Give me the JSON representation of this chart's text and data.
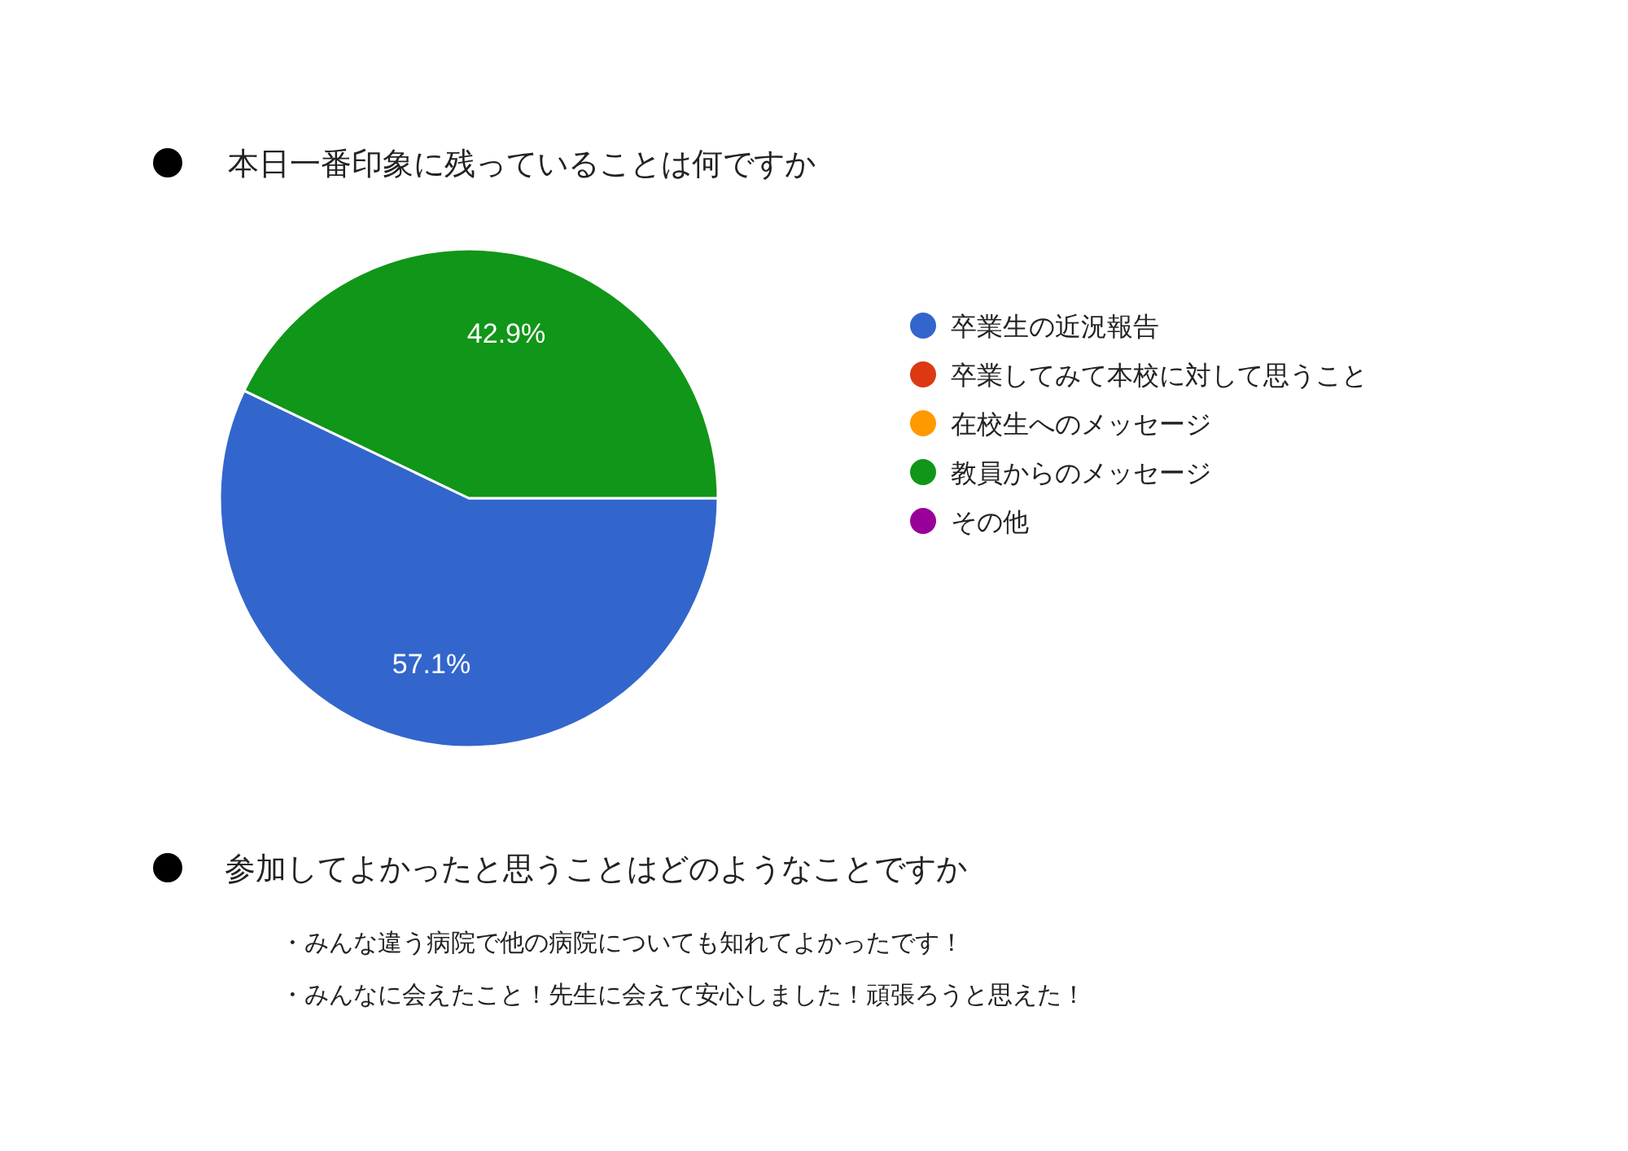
{
  "chart_data": {
    "type": "pie",
    "title": "本日一番印象に残っていることは何ですか",
    "categories": [
      "卒業生の近況報告",
      "卒業してみて本校に対して思うこと",
      "在校生へのメッセージ",
      "教員からのメッセージ",
      "その他"
    ],
    "values": [
      57.1,
      0,
      0,
      42.9,
      0
    ],
    "colors": [
      "#3366cc",
      "#dc3912",
      "#ff9900",
      "#109618",
      "#990099"
    ],
    "value_labels": [
      "57.1%",
      null,
      null,
      "42.9%",
      null
    ],
    "legend": "right",
    "annotations": [
      "参加してよかったと思うことはどのようなことですか",
      "・みんな違う病院で他の病院についても知れてよかったです！",
      "・みんなに会えたこと！先生に会えて安心しました！頑張ろうと思えた！"
    ]
  }
}
